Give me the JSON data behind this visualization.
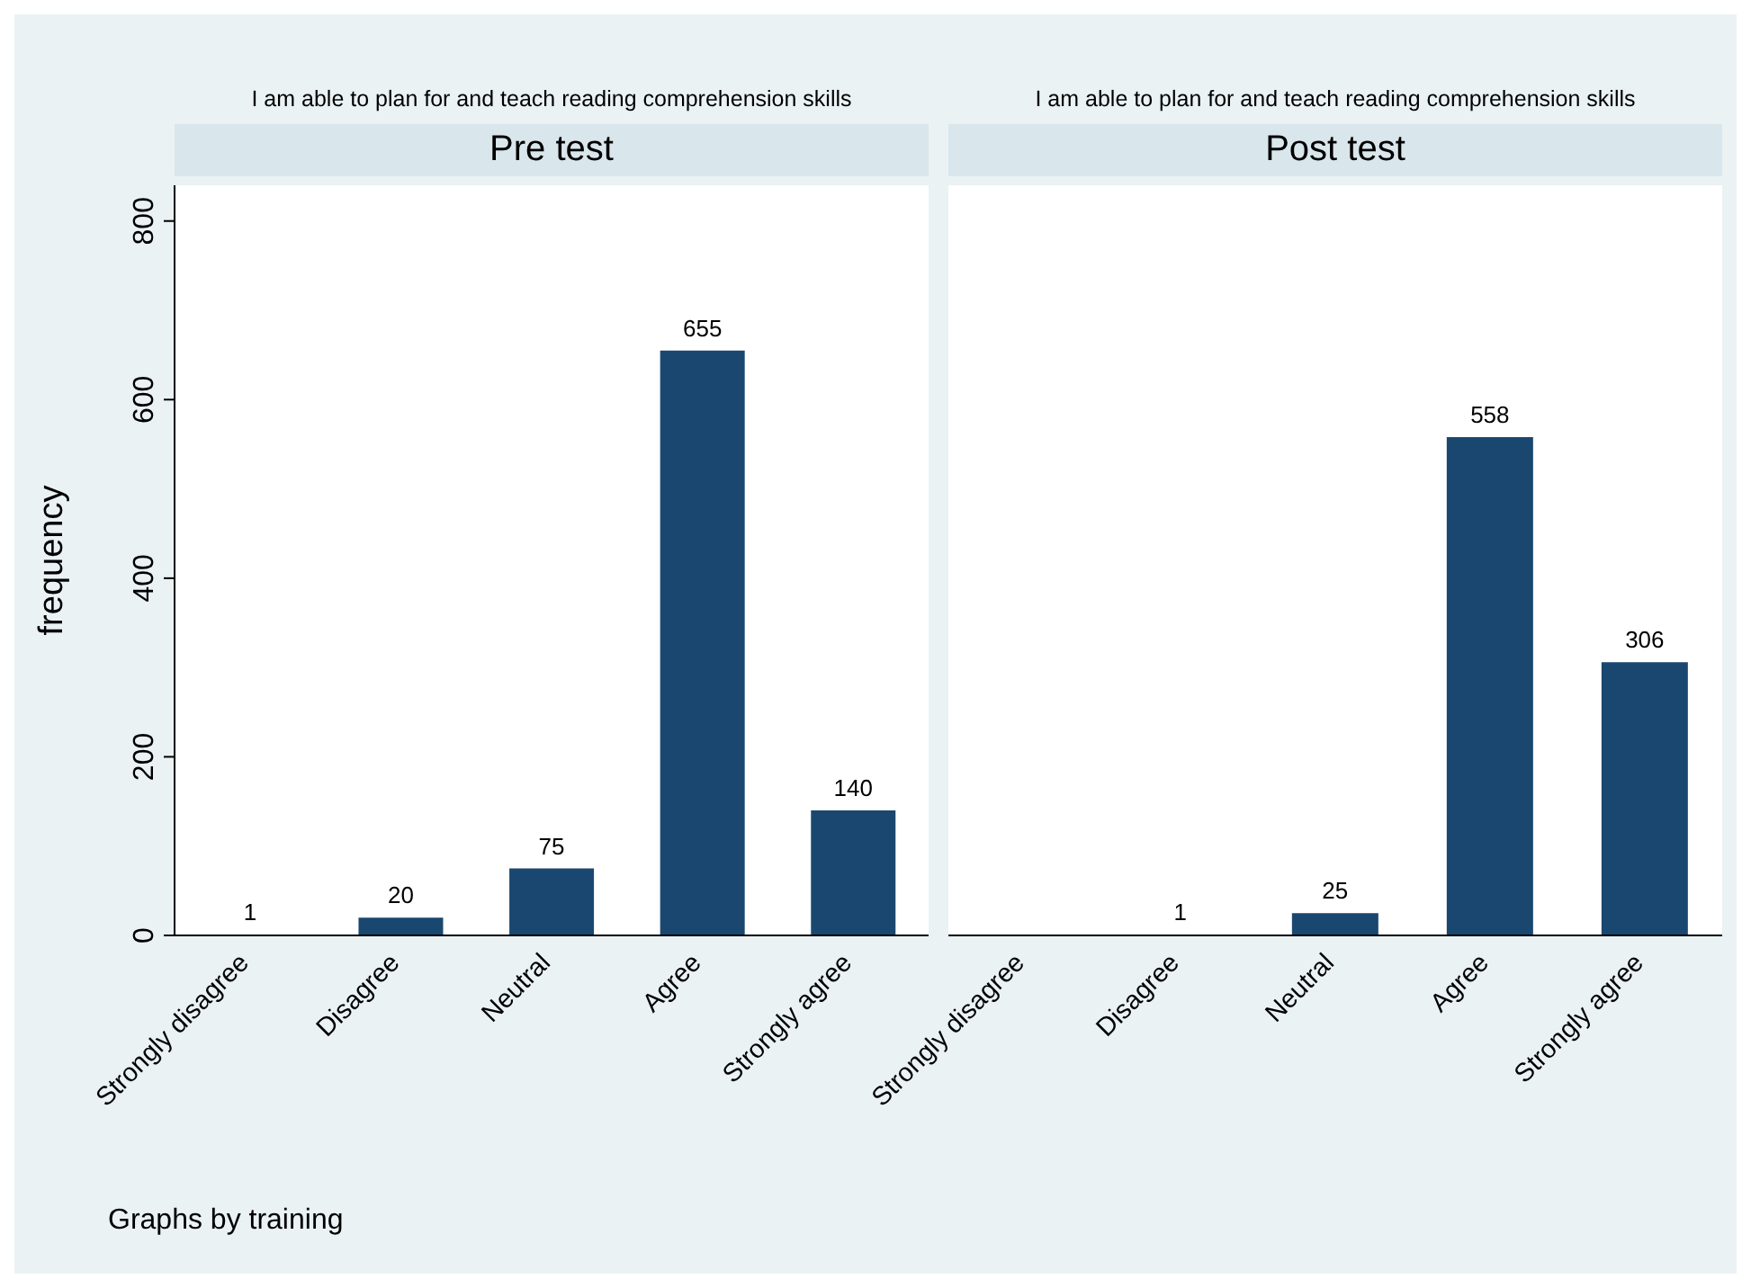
{
  "chart_data": [
    {
      "type": "bar",
      "subtitle": "I am able to plan for and teach reading comprehension skills",
      "title": "Pre test",
      "ylabel": "frequency",
      "categories": [
        "Strongly disagree",
        "Disagree",
        "Neutral",
        "Agree",
        "Strongly agree"
      ],
      "values": [
        1,
        20,
        75,
        655,
        140
      ],
      "color": "#1a476f",
      "ylim": [
        0,
        840
      ],
      "yticks": [
        0,
        200,
        400,
        600,
        800
      ],
      "data_labels": true,
      "annotations": [
        "Graphs by training"
      ]
    },
    {
      "type": "bar",
      "subtitle": "I am able to plan for and teach reading comprehension skills",
      "title": "Post test",
      "categories": [
        "Strongly disagree",
        "Disagree",
        "Neutral",
        "Agree",
        "Strongly agree"
      ],
      "values": [
        null,
        1,
        25,
        558,
        306
      ],
      "color": "#1a476f",
      "ylim": [
        0,
        840
      ],
      "yticks": [
        0,
        200,
        400,
        600,
        800
      ],
      "data_labels": true,
      "tick_labels": "x"
    }
  ]
}
